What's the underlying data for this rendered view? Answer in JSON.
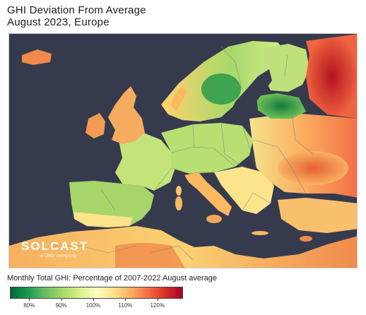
{
  "title": {
    "line1": "GHI Deviation From Average",
    "line2": "August 2023, Europe"
  },
  "logo": {
    "wordmark": "SOLCAST",
    "tagline": "a DNV company"
  },
  "colorbar": {
    "caption": "Monthly Total GHI: Percentage of 2007-2022 August average",
    "min": 0.74,
    "max": 1.28,
    "ticks": [
      "80%",
      "90%",
      "100%",
      "110%",
      "120%"
    ],
    "tick_values": [
      0.8,
      0.9,
      1.0,
      1.1,
      1.2
    ],
    "gradient": [
      "#006837",
      "#1a9850",
      "#66bd63",
      "#a6d96a",
      "#d9ef8b",
      "#ffffbf",
      "#fee08b",
      "#fdae61",
      "#f46d43",
      "#d73027",
      "#a50026"
    ]
  },
  "colors": {
    "sea": "#363a4d",
    "border": "#7a7a7a"
  }
}
